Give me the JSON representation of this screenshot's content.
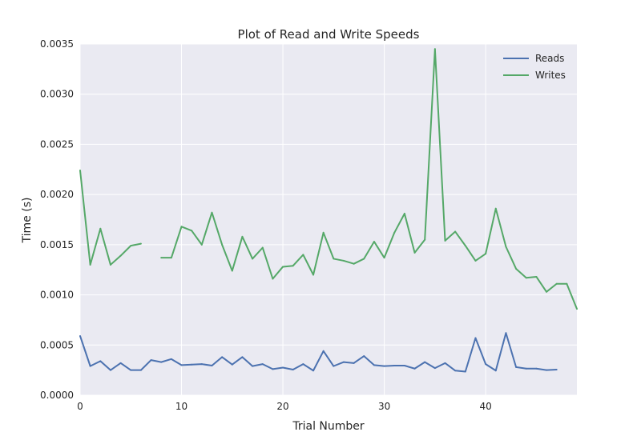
{
  "chart_data": {
    "type": "line",
    "title": "Plot of Read and Write Speeds",
    "xlabel": "Trial Number",
    "ylabel": "Time (s)",
    "xlim": [
      0,
      49
    ],
    "ylim": [
      0,
      0.0035
    ],
    "xticks": [
      0,
      10,
      20,
      30,
      40
    ],
    "xtick_labels": [
      "0",
      "10",
      "20",
      "30",
      "40"
    ],
    "yticks": [
      0.0,
      0.0005,
      0.001,
      0.0015,
      0.002,
      0.0025,
      0.003,
      0.0035
    ],
    "ytick_labels": [
      "0.0000",
      "0.0005",
      "0.0010",
      "0.0015",
      "0.0020",
      "0.0025",
      "0.0030",
      "0.0035"
    ],
    "grid": true,
    "legend_position": "top-right",
    "series": [
      {
        "name": "Reads",
        "color": "#4c72b0",
        "x": [
          0,
          1,
          2,
          3,
          4,
          5,
          6,
          7,
          8,
          9,
          10,
          11,
          12,
          13,
          14,
          15,
          16,
          17,
          18,
          19,
          20,
          21,
          22,
          23,
          24,
          25,
          26,
          27,
          28,
          29,
          30,
          31,
          32,
          33,
          34,
          35,
          36,
          37,
          38,
          39,
          40,
          41,
          42,
          43,
          44,
          45,
          46,
          47
        ],
        "values": [
          0.00059,
          0.00029,
          0.00034,
          0.00025,
          0.00032,
          0.00025,
          0.00025,
          0.00035,
          0.00033,
          0.00036,
          0.0003,
          0.000305,
          0.00031,
          0.000295,
          0.00038,
          0.000305,
          0.00038,
          0.00029,
          0.00031,
          0.00026,
          0.000275,
          0.000255,
          0.00031,
          0.000245,
          0.00044,
          0.00029,
          0.00033,
          0.00032,
          0.00039,
          0.0003,
          0.00029,
          0.000295,
          0.000295,
          0.000265,
          0.00033,
          0.00027,
          0.00032,
          0.000245,
          0.000235,
          0.00057,
          0.00031,
          0.000245,
          0.00062,
          0.00028,
          0.000265,
          0.000265,
          0.00025,
          0.000255
        ]
      },
      {
        "name": "Writes",
        "color": "#55a868",
        "x": [
          0,
          1,
          2,
          3,
          4,
          5,
          6,
          7,
          8,
          9,
          10,
          11,
          12,
          13,
          14,
          15,
          16,
          17,
          18,
          19,
          20,
          21,
          22,
          23,
          24,
          25,
          26,
          27,
          28,
          29,
          30,
          31,
          32,
          33,
          34,
          35,
          36,
          37,
          38,
          39,
          40,
          41,
          42,
          43,
          44,
          45,
          46,
          47,
          48,
          49
        ],
        "values": [
          0.00224,
          0.0013,
          0.00166,
          0.0013,
          0.00139,
          0.00149,
          0.00151,
          null,
          0.00137,
          0.00137,
          0.00168,
          0.00164,
          0.0015,
          0.00182,
          0.0015,
          0.00124,
          0.00158,
          0.00136,
          0.00147,
          0.00116,
          0.00128,
          0.00129,
          0.0014,
          0.0012,
          0.00162,
          0.00136,
          0.00134,
          0.00131,
          0.00136,
          0.00153,
          0.00137,
          0.00162,
          0.00181,
          0.00142,
          0.00155,
          0.00345,
          0.00154,
          0.00163,
          0.00149,
          0.00134,
          0.00141,
          0.00186,
          0.00148,
          0.00126,
          0.00117,
          0.00118,
          0.00103,
          0.00111,
          0.00111,
          0.00086
        ]
      }
    ]
  }
}
